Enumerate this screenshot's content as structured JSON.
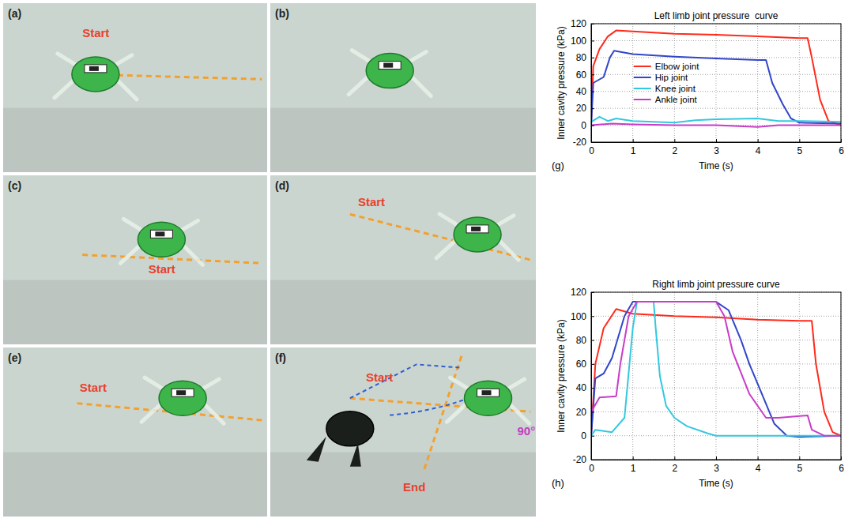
{
  "photo_panels": [
    {
      "label": "(a)",
      "texts": [
        "Start"
      ]
    },
    {
      "label": "(b)"
    },
    {
      "label": "(c)",
      "texts": [
        "Start"
      ]
    },
    {
      "label": "(d)",
      "texts": [
        "Start"
      ]
    },
    {
      "label": "(e)",
      "texts": [
        "Start"
      ]
    },
    {
      "label": "(f)",
      "texts": [
        "Start",
        "End",
        "90°"
      ]
    }
  ],
  "chart_data": [
    {
      "type": "line",
      "panel": "(g)",
      "title": "Left limb joint pressure  curve",
      "x_label": "Time (s)",
      "y_label": "Inner cavity pressure (kPa)",
      "xlim": [
        0,
        6
      ],
      "ylim": [
        -20,
        120
      ],
      "xticks": [
        0,
        1,
        2,
        3,
        4,
        5,
        6
      ],
      "yticks": [
        -20,
        0,
        20,
        40,
        60,
        80,
        100,
        120
      ],
      "grid": true,
      "legend": "center",
      "series": [
        {
          "name": "Elbow joint",
          "color": "#ff2a1a",
          "x": [
            0,
            0.05,
            0.2,
            0.4,
            0.6,
            1,
            2,
            3,
            4,
            5,
            5.2,
            5.3,
            5.5,
            5.7,
            6
          ],
          "values": [
            0,
            70,
            90,
            105,
            112,
            111,
            108,
            107,
            105,
            103,
            103,
            80,
            30,
            5,
            0
          ]
        },
        {
          "name": "Hip joint",
          "color": "#3246c8",
          "x": [
            0,
            0.05,
            0.3,
            0.45,
            0.55,
            1,
            2,
            3,
            4,
            4.2,
            4.35,
            4.6,
            4.8,
            5,
            6
          ],
          "values": [
            0,
            50,
            57,
            80,
            88,
            84,
            81,
            79,
            77,
            77,
            50,
            25,
            8,
            3,
            2
          ]
        },
        {
          "name": "Knee joint",
          "color": "#33c8e0",
          "x": [
            0,
            0.2,
            0.4,
            0.6,
            1,
            2,
            2.5,
            3,
            4,
            4.5,
            5,
            6
          ],
          "values": [
            4,
            10,
            5,
            8,
            5,
            3,
            6,
            7,
            8,
            5,
            5,
            4
          ]
        },
        {
          "name": "Ankle joint",
          "color": "#c83cc8",
          "x": [
            0,
            0.5,
            1,
            2,
            3,
            4,
            4.5,
            5,
            6
          ],
          "values": [
            0,
            2,
            1,
            0,
            0,
            -2,
            0,
            0,
            0
          ]
        }
      ]
    },
    {
      "type": "line",
      "panel": "(h)",
      "title": "Right limb joint pressure curve",
      "x_label": "Time (s)",
      "y_label": "Inner cavity pressure (kPa)",
      "xlim": [
        0,
        6
      ],
      "ylim": [
        -20,
        120
      ],
      "xticks": [
        0,
        1,
        2,
        3,
        4,
        5,
        6
      ],
      "yticks": [
        -20,
        0,
        20,
        40,
        60,
        80,
        100,
        120
      ],
      "grid": true,
      "series": [
        {
          "color": "#ff2a1a",
          "x": [
            0,
            0.1,
            0.3,
            0.6,
            1,
            2,
            3,
            4,
            5,
            5.3,
            5.4,
            5.6,
            5.8,
            6
          ],
          "values": [
            0,
            60,
            90,
            106,
            102,
            100,
            99,
            97,
            96,
            96,
            60,
            20,
            3,
            0
          ]
        },
        {
          "color": "#3246c8",
          "x": [
            0,
            0.1,
            0.3,
            0.5,
            0.8,
            1,
            2,
            3,
            3.3,
            3.6,
            3.8,
            4.1,
            4.4,
            4.7,
            5,
            6
          ],
          "values": [
            0,
            48,
            52,
            65,
            100,
            112,
            112,
            112,
            105,
            80,
            60,
            35,
            10,
            0,
            -1,
            0
          ]
        },
        {
          "color": "#33c8e0",
          "x": [
            0,
            0.1,
            0.5,
            0.8,
            1,
            1.1,
            1.5,
            1.55,
            1.65,
            1.8,
            2,
            2.3,
            2.8,
            3,
            4,
            5,
            6
          ],
          "values": [
            0,
            5,
            3,
            15,
            90,
            112,
            112,
            90,
            50,
            25,
            15,
            8,
            2,
            0,
            0,
            0,
            0
          ]
        },
        {
          "color": "#c83cc8",
          "x": [
            0,
            0.2,
            0.6,
            0.7,
            0.9,
            1.1,
            2,
            3,
            3.2,
            3.4,
            3.8,
            4.2,
            4.5,
            5.2,
            5.3,
            5.6,
            6
          ],
          "values": [
            20,
            32,
            33,
            60,
            100,
            112,
            112,
            112,
            100,
            70,
            35,
            15,
            15,
            17,
            5,
            0,
            0
          ]
        }
      ]
    }
  ]
}
